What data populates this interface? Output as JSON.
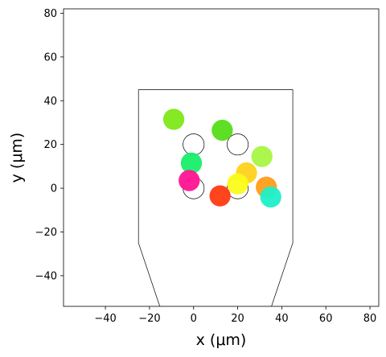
{
  "chart_data": {
    "type": "scatter",
    "title": "",
    "xlabel": "x (μm)",
    "ylabel": "y (μm)",
    "xlim": [
      -59,
      84
    ],
    "ylim": [
      -54,
      82
    ],
    "xticks": [
      -40,
      -20,
      0,
      20,
      40,
      60,
      80
    ],
    "yticks": [
      -40,
      -20,
      0,
      20,
      40,
      60,
      80
    ],
    "grid": false,
    "boundary": [
      [
        -25,
        -55
      ],
      [
        -25,
        -25
      ],
      [
        -25,
        45
      ],
      [
        45,
        45
      ],
      [
        45,
        -25
      ],
      [
        35,
        -55
      ]
    ],
    "boundary_corners": [
      [
        -25,
        45
      ],
      [
        45,
        45
      ],
      [
        45,
        -25
      ],
      [
        35,
        -55
      ],
      [
        -15,
        -55
      ],
      [
        -25,
        -25
      ]
    ],
    "empty_circles": [
      {
        "x": 0,
        "y": 20
      },
      {
        "x": 20,
        "y": 20
      },
      {
        "x": 0,
        "y": 0
      },
      {
        "x": 20,
        "y": 0
      }
    ],
    "points": [
      {
        "x": -9,
        "y": 31.5,
        "color": "#7ee818"
      },
      {
        "x": 13,
        "y": 26.5,
        "color": "#55dd18"
      },
      {
        "x": 31,
        "y": 14.5,
        "color": "#a8f545"
      },
      {
        "x": -1,
        "y": 11.5,
        "color": "#18ee6a"
      },
      {
        "x": 24,
        "y": 7,
        "color": "#ffd21e"
      },
      {
        "x": -2,
        "y": 3.5,
        "color": "#ff1493"
      },
      {
        "x": 20,
        "y": 2,
        "color": "#fbfb1a"
      },
      {
        "x": 33,
        "y": 0.5,
        "color": "#ff9e1a"
      },
      {
        "x": 35,
        "y": -4,
        "color": "#1ef0c8"
      },
      {
        "x": 12,
        "y": -3.5,
        "color": "#ff3a12"
      }
    ]
  }
}
